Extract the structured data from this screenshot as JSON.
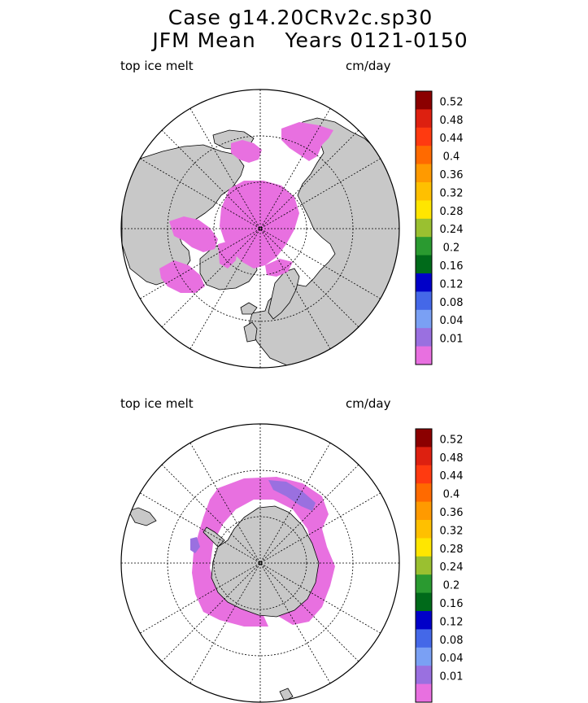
{
  "header": {
    "title_line1": "Case g14.20CRv2c.sp30",
    "title_line2": "JFM Mean    Years 0121-0150"
  },
  "panels": [
    {
      "name": "north",
      "variable_label": "top ice melt",
      "units_label": "cm/day"
    },
    {
      "name": "south",
      "variable_label": "top ice melt",
      "units_label": "cm/day"
    }
  ],
  "colorbar": {
    "levels": [
      "0.52",
      "0.48",
      "0.44",
      "0.4",
      "0.36",
      "0.32",
      "0.28",
      "0.24",
      "0.2",
      "0.16",
      "0.12",
      "0.08",
      "0.04",
      "0.01"
    ],
    "colors": [
      "#8b0000",
      "#dd2010",
      "#ff3a10",
      "#ff6a00",
      "#ff9a00",
      "#ffc000",
      "#ffe600",
      "#9ac030",
      "#2a9a30",
      "#006a1a",
      "#0000c8",
      "#4468e8",
      "#7aa0f4",
      "#9a70e0",
      "#e870e0"
    ]
  },
  "colors": {
    "land": "#c8c8c8",
    "ice_melt_low": "#e870e0",
    "ice_melt_mid": "#9a70e0"
  }
}
